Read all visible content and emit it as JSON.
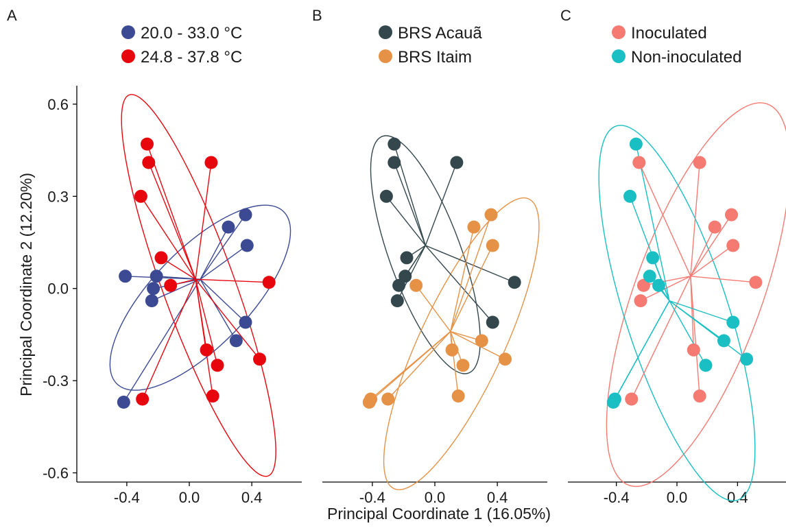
{
  "figure": {
    "xlabel": "Principal Coordinate 1 (16.05%)",
    "ylabel": "Principal Coordinate 2 (12.20%)",
    "x_ticks": [
      "-0.4",
      "0.0",
      "0.4"
    ],
    "y_ticks": [
      "0.6",
      "0.3",
      "0.0",
      "-0.3",
      "-0.6"
    ]
  },
  "chart_data": [
    {
      "type": "scatter",
      "panel": "A",
      "xlabel": "Principal Coordinate 1 (16.05%)",
      "ylabel": "Principal Coordinate 2 (12.20%)",
      "xlim": [
        -0.72,
        0.72
      ],
      "ylim": [
        -0.63,
        0.66
      ],
      "x_ticks": [
        -0.4,
        0.0,
        0.4
      ],
      "y_ticks": [
        -0.6,
        -0.3,
        0.0,
        0.3,
        0.6
      ],
      "grid": false,
      "legend": "top",
      "series": [
        {
          "name": "20.0 - 33.0 °C",
          "color": "#3C4A94",
          "centroid": [
            0.07,
            0.03
          ],
          "ellipse": {
            "center": [
              0.07,
              -0.03
            ],
            "rx": 0.31,
            "ry": 0.39,
            "angle_deg": 44
          },
          "x": [
            -0.41,
            -0.21,
            -0.23,
            -0.24,
            0.25,
            0.36,
            0.37,
            0.36,
            0.3,
            -0.42
          ],
          "y": [
            0.04,
            0.04,
            0.0,
            -0.04,
            0.2,
            0.24,
            0.14,
            -0.11,
            -0.17,
            -0.37
          ]
        },
        {
          "name": "24.8 - 37.8 °C",
          "color": "#E8060E",
          "centroid": [
            0.04,
            0.03
          ],
          "ellipse": {
            "center": [
              0.06,
              0.01
            ],
            "rx": 0.23,
            "ry": 0.66,
            "angle_deg": -20
          },
          "x": [
            -0.27,
            -0.26,
            0.14,
            -0.31,
            -0.18,
            -0.12,
            0.51,
            0.11,
            0.18,
            0.45,
            0.15,
            -0.3
          ],
          "y": [
            0.47,
            0.41,
            0.41,
            0.3,
            0.1,
            0.01,
            0.02,
            -0.2,
            -0.25,
            -0.23,
            -0.35,
            -0.36
          ]
        }
      ]
    },
    {
      "type": "scatter",
      "panel": "B",
      "xlabel": "Principal Coordinate 1 (16.05%)",
      "xlim": [
        -0.72,
        0.72
      ],
      "ylim": [
        -0.63,
        0.66
      ],
      "x_ticks": [
        -0.4,
        0.0,
        0.4
      ],
      "grid": false,
      "legend": "top",
      "series": [
        {
          "name": "BRS Acauã",
          "color": "#33474D",
          "centroid": [
            -0.06,
            0.14
          ],
          "ellipse": {
            "center": [
              -0.06,
              0.11
            ],
            "rx": 0.23,
            "ry": 0.41,
            "angle_deg": -20
          },
          "x": [
            -0.26,
            -0.26,
            0.14,
            -0.31,
            -0.18,
            -0.19,
            -0.23,
            -0.24,
            0.51,
            0.37
          ],
          "y": [
            0.47,
            0.41,
            0.41,
            0.3,
            0.1,
            0.04,
            0.01,
            -0.04,
            0.02,
            -0.11
          ]
        },
        {
          "name": "BRS Itaim",
          "color": "#E69246",
          "centroid": [
            0.1,
            -0.14
          ],
          "ellipse": {
            "center": [
              0.17,
              -0.18
            ],
            "rx": 0.27,
            "ry": 0.52,
            "angle_deg": 25
          },
          "x": [
            -0.12,
            0.25,
            0.36,
            0.37,
            0.3,
            0.11,
            0.18,
            0.45,
            0.15,
            -0.3,
            -0.41,
            -0.42
          ],
          "y": [
            0.01,
            0.2,
            0.24,
            0.14,
            -0.17,
            -0.2,
            -0.25,
            -0.23,
            -0.35,
            -0.36,
            -0.36,
            -0.37
          ]
        }
      ]
    },
    {
      "type": "scatter",
      "panel": "C",
      "xlabel": "Principal Coordinate 1 (16.05%)",
      "xlim": [
        -0.72,
        0.72
      ],
      "ylim": [
        -0.63,
        0.66
      ],
      "x_ticks": [
        -0.4,
        0.0,
        0.4
      ],
      "grid": false,
      "legend": "top",
      "series": [
        {
          "name": "Inoculated",
          "color": "#F57A72",
          "centroid": [
            0.09,
            0.04
          ],
          "ellipse": {
            "center": [
              0.14,
              -0.02
            ],
            "rx": 0.42,
            "ry": 0.66,
            "angle_deg": 20
          },
          "x": [
            -0.25,
            0.15,
            0.25,
            0.36,
            0.37,
            -0.22,
            -0.24,
            0.52,
            0.11,
            0.15,
            -0.3
          ],
          "y": [
            0.41,
            0.41,
            0.2,
            0.24,
            0.14,
            0.01,
            -0.04,
            0.02,
            -0.2,
            -0.35,
            -0.36
          ]
        },
        {
          "name": "Non-inoculated",
          "color": "#1ABFC3",
          "centroid": [
            -0.05,
            -0.04
          ],
          "ellipse": {
            "center": [
              0.0,
              -0.08
            ],
            "rx": 0.34,
            "ry": 0.64,
            "angle_deg": -18
          },
          "x": [
            -0.27,
            -0.31,
            -0.16,
            -0.18,
            -0.12,
            0.37,
            0.31,
            0.46,
            0.19,
            -0.41,
            -0.42
          ],
          "y": [
            0.47,
            0.3,
            0.1,
            0.04,
            0.01,
            -0.11,
            -0.17,
            -0.23,
            -0.25,
            -0.36,
            -0.37
          ]
        }
      ]
    }
  ]
}
